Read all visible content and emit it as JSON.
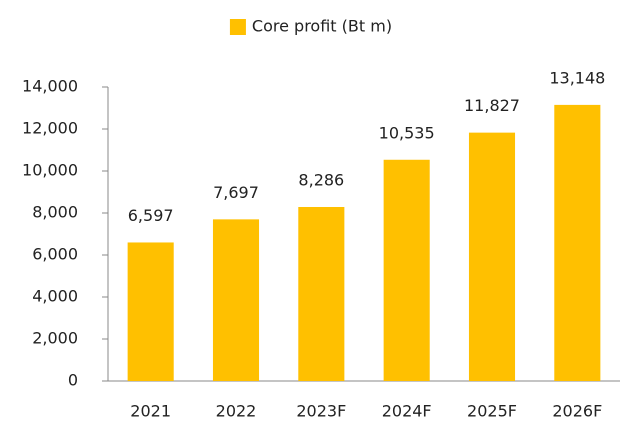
{
  "chart_data": {
    "type": "bar",
    "categories": [
      "2021",
      "2022",
      "2023F",
      "2024F",
      "2025F",
      "2026F"
    ],
    "series": [
      {
        "name": "Core profit (Bt m)",
        "color": "#ffc000",
        "values": [
          6597,
          7697,
          8286,
          10535,
          11827,
          13148
        ],
        "value_labels": [
          "6,597",
          "7,697",
          "8,286",
          "10,535",
          "11,827",
          "13,148"
        ]
      }
    ],
    "ylim": [
      0,
      14000
    ],
    "yticks": [
      0,
      {
        "value": 2000,
        "label": "2,000"
      },
      {
        "value": 4000,
        "label": "4,000"
      },
      {
        "value": 6000,
        "label": "6,000"
      },
      {
        "value": 8000,
        "label": "8,000"
      },
      {
        "value": 10000,
        "label": "10,000"
      },
      {
        "value": 12000,
        "label": "12,000"
      },
      {
        "value": 14000,
        "label": "14,000"
      }
    ],
    "grid": false,
    "legend": "top"
  }
}
